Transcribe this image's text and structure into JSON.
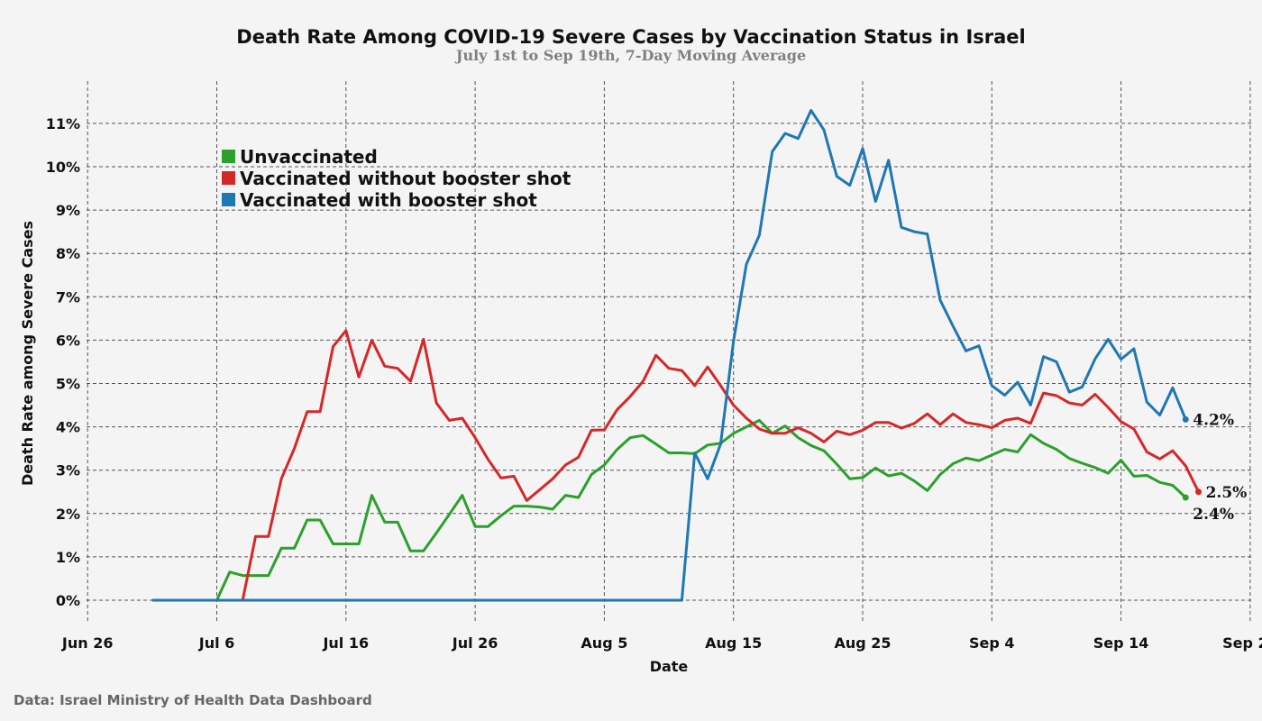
{
  "chart_data": {
    "type": "line",
    "title": "Death Rate Among COVID-19 Severe Cases by Vaccination Status in Israel",
    "subtitle": "July 1st to Sep 19th, 7-Day Moving Average",
    "xlabel": "Date",
    "ylabel": "Death Rate among Severe Cases",
    "source": "Data: Israel Ministry of Health Data Dashboard",
    "x_start": "2021-07-01",
    "x_tick_labels": [
      "Jun 26",
      "Jul 6",
      "Jul 16",
      "Jul 26",
      "Aug 5",
      "Aug 15",
      "Aug 25",
      "Sep 4",
      "Sep 14",
      "Sep 24"
    ],
    "y_tick_labels": [
      "0%",
      "1%",
      "2%",
      "3%",
      "4%",
      "5%",
      "6%",
      "7%",
      "8%",
      "9%",
      "10%",
      "11%"
    ],
    "ylim": [
      -0.5,
      11.5
    ],
    "grid": true,
    "legend_position": "top-left",
    "series": [
      {
        "name": "Unvaccinated",
        "color": "#2ca02c",
        "end_label": "2.4%",
        "values": [
          0,
          0,
          0,
          0,
          0,
          0,
          0.65,
          0.57,
          0.57,
          0.57,
          1.2,
          1.2,
          1.85,
          1.85,
          1.3,
          1.3,
          1.3,
          2.42,
          1.8,
          1.8,
          1.14,
          1.14,
          1.55,
          1.98,
          2.42,
          1.7,
          1.7,
          1.95,
          2.17,
          2.17,
          2.15,
          2.1,
          2.42,
          2.37,
          2.9,
          3.12,
          3.48,
          3.75,
          3.8,
          3.6,
          3.4,
          3.4,
          3.38,
          3.58,
          3.62,
          3.85,
          4.0,
          4.15,
          3.85,
          4.02,
          3.75,
          3.57,
          3.45,
          3.14,
          2.8,
          2.83,
          3.05,
          2.87,
          2.93,
          2.75,
          2.53,
          2.9,
          3.15,
          3.28,
          3.22,
          3.35,
          3.48,
          3.42,
          3.82,
          3.62,
          3.48,
          3.27,
          3.16,
          3.06,
          2.93,
          3.23,
          2.86,
          2.88,
          2.72,
          2.65,
          2.37
        ]
      },
      {
        "name": "Vaccinated without booster shot",
        "color": "#d62728",
        "end_label": "2.5%",
        "values": [
          0,
          0,
          0,
          0,
          0,
          0,
          0,
          0,
          1.47,
          1.47,
          2.8,
          3.5,
          4.35,
          4.35,
          5.85,
          6.22,
          5.15,
          6.0,
          5.4,
          5.35,
          5.05,
          6.02,
          4.55,
          4.15,
          4.2,
          3.75,
          3.25,
          2.82,
          2.86,
          2.3,
          2.55,
          2.8,
          3.12,
          3.3,
          3.92,
          3.93,
          4.4,
          4.7,
          5.05,
          5.65,
          5.35,
          5.3,
          4.95,
          5.38,
          4.95,
          4.5,
          4.2,
          3.95,
          3.85,
          3.85,
          3.98,
          3.85,
          3.65,
          3.9,
          3.82,
          3.92,
          4.1,
          4.1,
          3.97,
          4.08,
          4.3,
          4.05,
          4.3,
          4.1,
          4.05,
          3.98,
          4.15,
          4.2,
          4.08,
          4.78,
          4.72,
          4.55,
          4.5,
          4.75,
          4.45,
          4.12,
          3.95,
          3.42,
          3.26,
          3.45,
          3.1,
          2.5
        ]
      },
      {
        "name": "Vaccinated with booster shot",
        "color": "#1f77b4",
        "end_label": "4.2%",
        "values": [
          0,
          0,
          0,
          0,
          0,
          0,
          0,
          0,
          0,
          0,
          0,
          0,
          0,
          0,
          0,
          0,
          0,
          0,
          0,
          0,
          0,
          0,
          0,
          0,
          0,
          0,
          0,
          0,
          0,
          0,
          0,
          0,
          0,
          0,
          0,
          0,
          0,
          0,
          0,
          0,
          0,
          0,
          3.4,
          2.8,
          3.6,
          5.97,
          7.75,
          8.42,
          10.35,
          10.77,
          10.65,
          11.3,
          10.85,
          9.78,
          9.57,
          10.42,
          9.2,
          10.15,
          8.6,
          8.5,
          8.45,
          6.92,
          6.32,
          5.75,
          5.87,
          4.95,
          4.73,
          5.03,
          4.5,
          5.62,
          5.5,
          4.8,
          4.92,
          5.57,
          6.02,
          5.56,
          5.8,
          4.57,
          4.27,
          4.9,
          4.17
        ]
      }
    ]
  }
}
